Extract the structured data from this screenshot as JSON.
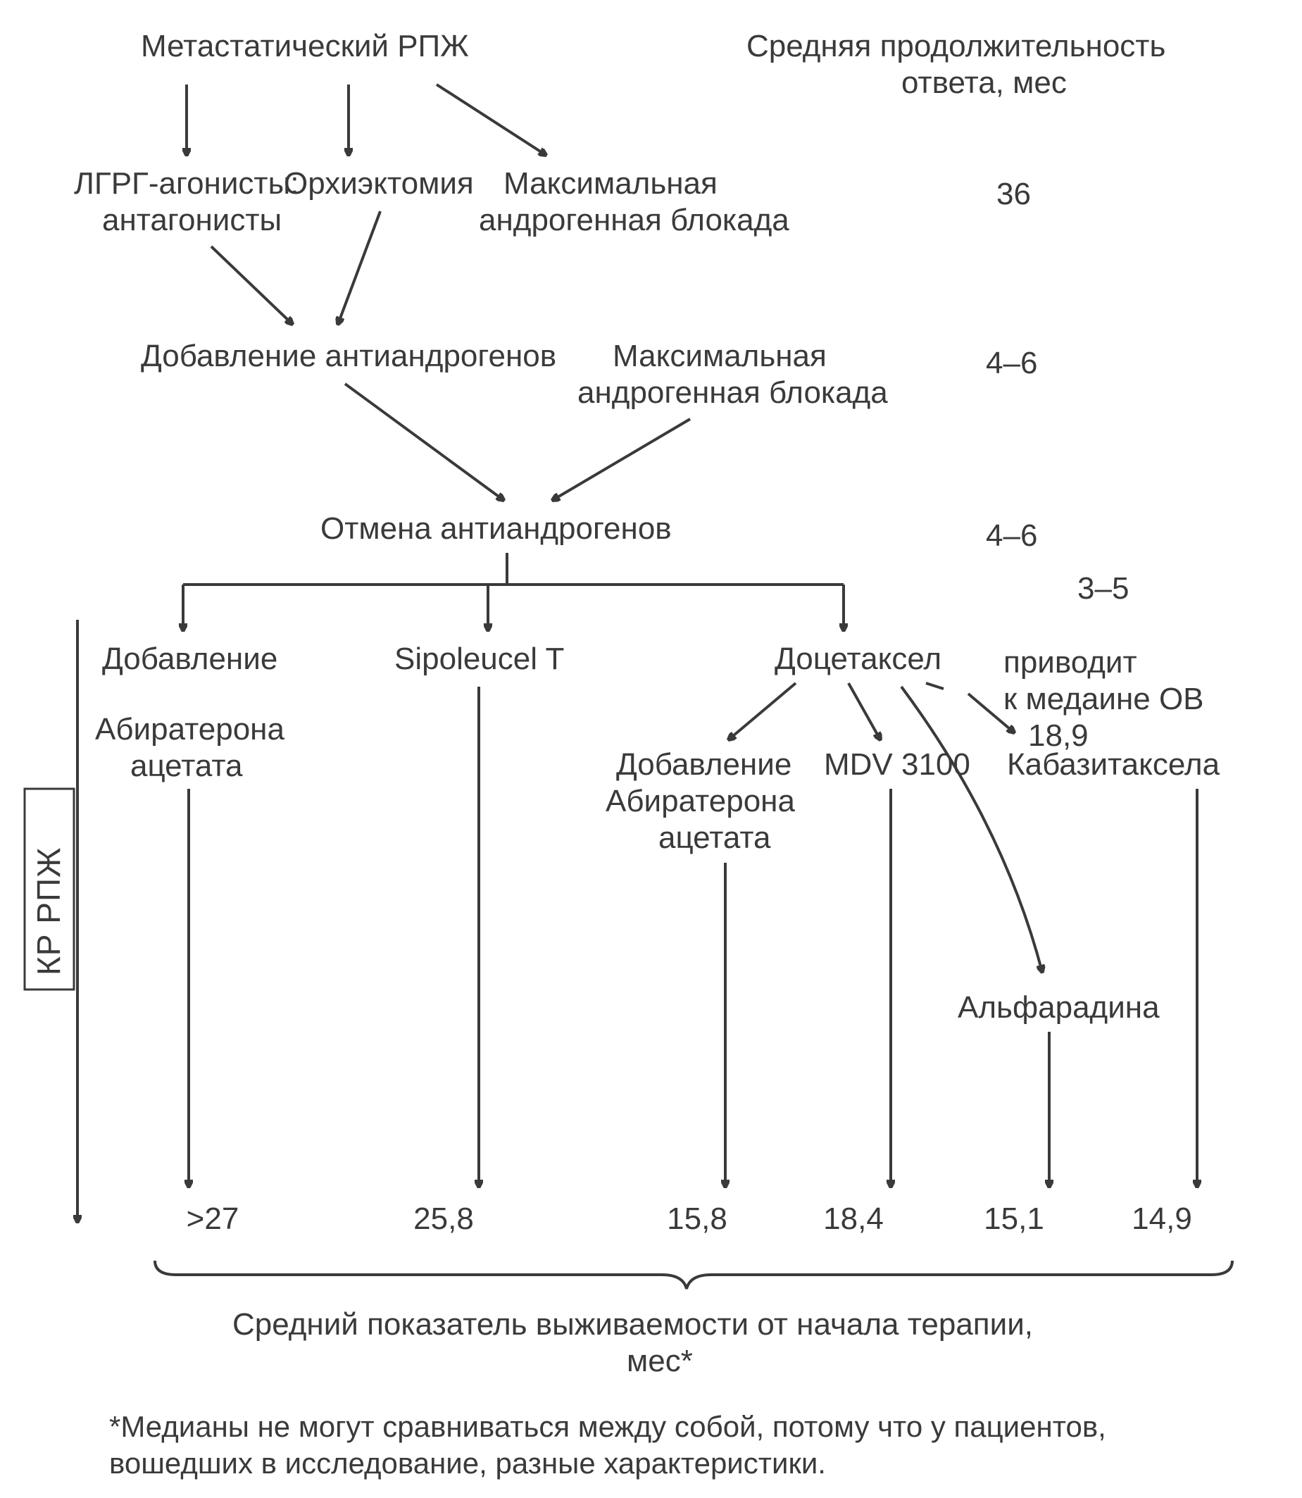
{
  "type": "flowchart",
  "background_color": "#ffffff",
  "text_color": "#3a3a3a",
  "stroke_color": "#3a3a3a",
  "stroke_width": 4,
  "font_family": "Arial",
  "header_col_title": "Средняя продолжительность ответа, мес",
  "root": "Метастатический РПЖ",
  "level1_a1": "ЛГРГ-агонисты:",
  "level1_a2": "антагонисты",
  "level1_b": "Орхиэктомия",
  "level1_c1": "Максимальная",
  "level1_c2": "андрогенная блокада",
  "val_1": "36",
  "level2": "Добавление антиандрогенов",
  "level2_side1": "Максимальная",
  "level2_side2": "андрогенная блокада",
  "val_2": "4–6",
  "level3": "Отмена антиандрогенов",
  "val_3": "4–6",
  "val_3b": "3–5",
  "branch_add": "Добавление",
  "branch_b": "Sipoleucel T",
  "branch_c": "Доцетаксел",
  "branch_c_note1": "приводит",
  "branch_c_note2": "к медаине ОВ",
  "branch_c_note3": "18,9",
  "drug_a1": "Абиратерона",
  "drug_a2": "ацетата",
  "drug_c1_1": "Добавление",
  "drug_c1_2": "Абиратерона",
  "drug_c1_3": "ацетата",
  "drug_c2": "MDV 3100",
  "drug_c3": "Кабазитаксела",
  "drug_c4": "Альфарадина",
  "side_label": "КР РПЖ",
  "bottom_values": [
    ">27",
    "25,8",
    "15,8",
    "18,4",
    "15,1",
    "14,9"
  ],
  "bottom_x": [
    302,
    630,
    990,
    1212,
    1440,
    1650
  ],
  "bottom_caption1": "Средний показатель выживаемости от начала терапии,",
  "bottom_caption2": "мес*",
  "footnote1": "*Медианы не могут сравниваться между собой, потому что у пациентов,",
  "footnote2": "вошедших в исследование, разные характеристики.",
  "arrowhead_size": 18
}
